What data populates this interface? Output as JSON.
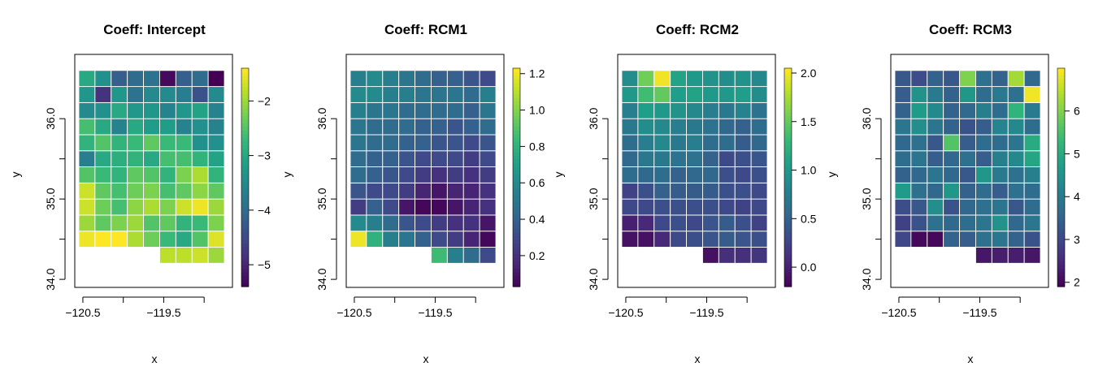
{
  "chart_data": [
    {
      "type": "heatmap",
      "title": "Coeff: Intercept",
      "xlabel": "x",
      "ylabel": "y",
      "xlim": [
        -120.6,
        -118.65
      ],
      "ylim": [
        33.9,
        36.8
      ],
      "x_ticks": [
        "−120.5",
        "−119.5"
      ],
      "y_ticks": [
        "34.0",
        "35.0",
        "36.0"
      ],
      "grid": {
        "x0": -120.55,
        "y0": 34.2,
        "cell": 0.2,
        "cols": 9,
        "rows": 12
      },
      "colorbar": {
        "min": -5.4,
        "max": -1.4,
        "ticks": [
          "−2",
          "−3",
          "−4",
          "−5"
        ],
        "tick_values": [
          -2,
          -3,
          -4,
          -5
        ]
      },
      "values": [
        [
          null,
          null,
          null,
          null,
          null,
          -1.8,
          -1.8,
          -1.7,
          -2.0
        ],
        [
          -1.5,
          -1.3,
          -1.3,
          -1.9,
          -2.3,
          -2.7,
          -3.0,
          -2.5,
          -1.6
        ],
        [
          -2.0,
          -2.4,
          -2.2,
          -2.0,
          -2.5,
          -2.4,
          -2.8,
          -2.7,
          -2.2
        ],
        [
          -1.7,
          -2.3,
          -2.6,
          -2.1,
          -1.9,
          -2.2,
          -1.7,
          -1.5,
          -2.0
        ],
        [
          -1.7,
          -2.4,
          -2.6,
          -2.3,
          -2.2,
          -2.6,
          -2.4,
          -2.1,
          -2.4
        ],
        [
          -2.5,
          -2.7,
          -2.8,
          -2.4,
          -2.5,
          -2.8,
          -2.2,
          -1.9,
          -2.8
        ],
        [
          -3.7,
          -3.0,
          -2.9,
          -2.8,
          -3.0,
          -2.6,
          -2.6,
          -2.8,
          -3.1
        ],
        [
          -2.8,
          -2.5,
          -2.8,
          -2.7,
          -2.4,
          -2.7,
          -2.7,
          -3.4,
          -3.4
        ],
        [
          -2.6,
          -3.0,
          -3.6,
          -3.0,
          -3.2,
          -3.2,
          -3.6,
          -3.4,
          -3.6
        ],
        [
          -3.5,
          -3.4,
          -3.0,
          -3.3,
          -3.3,
          -3.6,
          -3.3,
          -3.1,
          -3.6
        ],
        [
          -3.3,
          -4.8,
          -3.3,
          -3.9,
          -3.5,
          -3.5,
          -3.7,
          -4.4,
          -3.5
        ],
        [
          -3.0,
          -3.4,
          -4.2,
          -4.0,
          -3.9,
          -5.3,
          -4.2,
          -4.0,
          -5.4
        ]
      ]
    },
    {
      "type": "heatmap",
      "title": "Coeff: RCM1",
      "xlabel": "x",
      "ylabel": "y",
      "xlim": [
        -120.6,
        -118.65
      ],
      "ylim": [
        33.9,
        36.8
      ],
      "x_ticks": [
        "−120.5",
        "−119.5"
      ],
      "y_ticks": [
        "34.0",
        "35.0",
        "36.0"
      ],
      "grid": {
        "x0": -120.55,
        "y0": 34.2,
        "cell": 0.2,
        "cols": 9,
        "rows": 12
      },
      "colorbar": {
        "min": 0.03,
        "max": 1.23,
        "ticks": [
          "0.2",
          "0.4",
          "0.6",
          "0.8",
          "1.0",
          "1.2"
        ],
        "tick_values": [
          0.2,
          0.4,
          0.6,
          0.8,
          1.0,
          1.2
        ]
      },
      "values": [
        [
          null,
          null,
          null,
          null,
          null,
          0.85,
          0.55,
          0.45,
          0.3
        ],
        [
          1.2,
          0.8,
          0.55,
          0.5,
          0.4,
          0.3,
          0.25,
          0.15,
          0.05
        ],
        [
          0.6,
          0.55,
          0.45,
          0.35,
          0.3,
          0.25,
          0.2,
          0.2,
          0.1
        ],
        [
          0.25,
          0.4,
          0.3,
          0.1,
          0.05,
          0.05,
          0.1,
          0.15,
          0.2
        ],
        [
          0.35,
          0.3,
          0.3,
          0.25,
          0.15,
          0.1,
          0.15,
          0.15,
          0.2
        ],
        [
          0.45,
          0.4,
          0.35,
          0.3,
          0.25,
          0.2,
          0.25,
          0.2,
          0.25
        ],
        [
          0.45,
          0.4,
          0.4,
          0.35,
          0.3,
          0.3,
          0.3,
          0.25,
          0.3
        ],
        [
          0.5,
          0.45,
          0.45,
          0.4,
          0.4,
          0.35,
          0.35,
          0.3,
          0.35
        ],
        [
          0.5,
          0.45,
          0.45,
          0.45,
          0.4,
          0.4,
          0.35,
          0.4,
          0.45
        ],
        [
          0.55,
          0.5,
          0.5,
          0.45,
          0.45,
          0.45,
          0.45,
          0.4,
          0.5
        ],
        [
          0.6,
          0.6,
          0.55,
          0.55,
          0.5,
          0.5,
          0.5,
          0.45,
          0.55
        ],
        [
          0.55,
          0.6,
          0.55,
          0.5,
          0.45,
          0.4,
          0.4,
          0.35,
          0.3
        ]
      ]
    },
    {
      "type": "heatmap",
      "title": "Coeff: RCM2",
      "xlabel": "x",
      "ylabel": "y",
      "xlim": [
        -120.6,
        -118.65
      ],
      "ylim": [
        33.9,
        36.8
      ],
      "x_ticks": [
        "−120.5",
        "−119.5"
      ],
      "y_ticks": [
        "34.0",
        "35.0",
        "36.0"
      ],
      "grid": {
        "x0": -120.55,
        "y0": 34.2,
        "cell": 0.2,
        "cols": 9,
        "rows": 12
      },
      "colorbar": {
        "min": -0.2,
        "max": 2.05,
        "ticks": [
          "0.0",
          "0.5",
          "1.0",
          "1.5",
          "2.0"
        ],
        "tick_values": [
          0.0,
          0.5,
          1.0,
          1.5,
          2.0
        ]
      },
      "values": [
        [
          null,
          null,
          null,
          null,
          null,
          -0.1,
          0.1,
          0.1,
          0.15
        ],
        [
          -0.1,
          -0.1,
          0.05,
          0.3,
          0.35,
          0.4,
          0.45,
          0.4,
          0.35
        ],
        [
          0.0,
          0.05,
          0.3,
          0.35,
          0.3,
          0.4,
          0.45,
          0.35,
          0.25
        ],
        [
          0.3,
          0.3,
          0.35,
          0.35,
          0.35,
          0.35,
          0.3,
          0.25,
          0.3
        ],
        [
          0.25,
          0.35,
          0.5,
          0.45,
          0.45,
          0.45,
          0.35,
          0.35,
          0.3
        ],
        [
          0.6,
          0.55,
          0.6,
          0.5,
          0.55,
          0.55,
          0.35,
          0.3,
          0.35
        ],
        [
          0.55,
          0.7,
          0.7,
          0.65,
          0.65,
          0.5,
          0.3,
          0.35,
          0.4
        ],
        [
          0.6,
          0.75,
          0.85,
          0.7,
          0.75,
          0.6,
          0.6,
          0.45,
          0.55
        ],
        [
          0.7,
          0.9,
          0.85,
          0.75,
          0.7,
          0.65,
          0.55,
          0.5,
          0.6
        ],
        [
          0.75,
          1.05,
          1.0,
          0.95,
          0.85,
          0.75,
          0.7,
          0.8,
          0.65
        ],
        [
          1.0,
          1.35,
          1.5,
          1.05,
          1.1,
          1.0,
          1.0,
          1.05,
          0.9
        ],
        [
          0.9,
          1.55,
          2.0,
          1.1,
          1.0,
          0.95,
          0.9,
          0.95,
          0.85
        ]
      ]
    },
    {
      "type": "heatmap",
      "title": "Coeff: RCM3",
      "xlabel": "x",
      "ylabel": "y",
      "xlim": [
        -120.6,
        -118.65
      ],
      "ylim": [
        33.9,
        36.8
      ],
      "x_ticks": [
        "−120.5",
        "−119.5"
      ],
      "y_ticks": [
        "34.0",
        "35.0",
        "36.0"
      ],
      "grid": {
        "x0": -120.55,
        "y0": 34.2,
        "cell": 0.2,
        "cols": 9,
        "rows": 12
      },
      "colorbar": {
        "min": 1.9,
        "max": 7.0,
        "ticks": [
          "2",
          "3",
          "4",
          "5",
          "6"
        ],
        "tick_values": [
          2,
          3,
          4,
          5,
          6
        ]
      },
      "values": [
        [
          null,
          null,
          null,
          null,
          null,
          2.2,
          2.3,
          2.3,
          2.2
        ],
        [
          3.0,
          2.0,
          2.0,
          3.5,
          3.4,
          3.8,
          3.9,
          3.5,
          3.2
        ],
        [
          2.9,
          3.2,
          3.8,
          3.6,
          3.7,
          3.9,
          4.5,
          3.6,
          3.9
        ],
        [
          3.1,
          3.3,
          4.4,
          3.2,
          3.6,
          3.8,
          3.9,
          3.3,
          3.7
        ],
        [
          4.7,
          3.8,
          3.6,
          4.6,
          3.5,
          3.7,
          3.4,
          3.8,
          3.7
        ],
        [
          3.5,
          3.6,
          3.9,
          3.6,
          3.3,
          4.6,
          4.0,
          3.8,
          4.1
        ],
        [
          3.7,
          3.9,
          3.4,
          3.6,
          3.8,
          3.4,
          4.1,
          4.3,
          4.9
        ],
        [
          3.6,
          3.8,
          3.3,
          5.6,
          3.4,
          3.7,
          3.7,
          3.9,
          5.0
        ],
        [
          3.9,
          4.4,
          3.9,
          3.5,
          3.2,
          3.4,
          4.2,
          4.3,
          3.7
        ],
        [
          3.5,
          4.7,
          4.3,
          3.5,
          3.6,
          4.1,
          3.7,
          5.2,
          4.0
        ],
        [
          3.4,
          4.5,
          4.0,
          3.5,
          4.6,
          3.7,
          4.0,
          3.8,
          6.9
        ],
        [
          3.3,
          3.1,
          3.5,
          3.3,
          6.0,
          3.8,
          3.5,
          6.3,
          3.6
        ]
      ]
    }
  ]
}
